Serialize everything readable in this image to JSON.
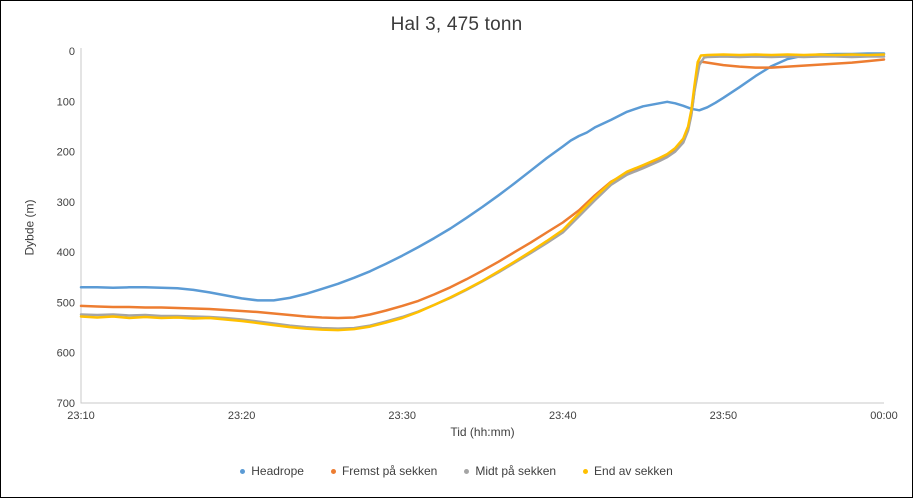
{
  "chart_data": {
    "type": "line",
    "title": "Hal 3, 475 tonn",
    "xlabel": "Tid (hh:mm)",
    "ylabel": "Dybde (m)",
    "x_tick_labels": [
      "23:10",
      "23:20",
      "23:30",
      "23:40",
      "23:50",
      "00:00"
    ],
    "x_tick_minutes": [
      0,
      10,
      20,
      30,
      40,
      50
    ],
    "xlim_minutes": [
      0,
      50
    ],
    "y_ticks": [
      0,
      100,
      200,
      300,
      400,
      500,
      600,
      700
    ],
    "ylim": [
      0,
      700
    ],
    "y_axis_inverted": true,
    "grid": false,
    "legend_position": "bottom",
    "axis_color": "#c9c9c9",
    "text_color": "#404040",
    "series": [
      {
        "name": "Headrope",
        "color": "#5B9BD5",
        "points": [
          [
            0,
            470
          ],
          [
            1,
            470
          ],
          [
            2,
            471
          ],
          [
            3,
            470
          ],
          [
            4,
            470
          ],
          [
            5,
            471
          ],
          [
            6,
            472
          ],
          [
            7,
            475
          ],
          [
            8,
            480
          ],
          [
            9,
            486
          ],
          [
            10,
            492
          ],
          [
            11,
            496
          ],
          [
            12,
            496
          ],
          [
            13,
            491
          ],
          [
            14,
            483
          ],
          [
            15,
            473
          ],
          [
            16,
            463
          ],
          [
            17,
            451
          ],
          [
            18,
            438
          ],
          [
            19,
            423
          ],
          [
            20,
            407
          ],
          [
            21,
            390
          ],
          [
            22,
            372
          ],
          [
            23,
            353
          ],
          [
            24,
            332
          ],
          [
            25,
            310
          ],
          [
            26,
            287
          ],
          [
            27,
            263
          ],
          [
            28,
            238
          ],
          [
            29,
            213
          ],
          [
            30,
            190
          ],
          [
            30.5,
            178
          ],
          [
            31,
            169
          ],
          [
            31.5,
            162
          ],
          [
            32,
            152
          ],
          [
            33,
            137
          ],
          [
            34,
            121
          ],
          [
            35,
            110
          ],
          [
            36,
            104
          ],
          [
            36.5,
            101
          ],
          [
            37,
            104
          ],
          [
            37.5,
            109
          ],
          [
            38,
            115
          ],
          [
            38.5,
            118
          ],
          [
            39,
            112
          ],
          [
            39.5,
            103
          ],
          [
            40,
            93
          ],
          [
            41,
            72
          ],
          [
            42,
            50
          ],
          [
            43,
            30
          ],
          [
            44,
            16
          ],
          [
            45,
            9
          ],
          [
            46,
            7
          ],
          [
            47,
            6
          ],
          [
            48,
            6
          ],
          [
            49,
            5
          ],
          [
            50,
            5
          ]
        ]
      },
      {
        "name": "Fremst på sekken",
        "color": "#ED7D31",
        "points": [
          [
            0,
            507
          ],
          [
            1,
            508
          ],
          [
            2,
            509
          ],
          [
            3,
            509
          ],
          [
            4,
            510
          ],
          [
            5,
            510
          ],
          [
            6,
            511
          ],
          [
            7,
            512
          ],
          [
            8,
            513
          ],
          [
            9,
            515
          ],
          [
            10,
            517
          ],
          [
            11,
            519
          ],
          [
            12,
            522
          ],
          [
            13,
            525
          ],
          [
            14,
            528
          ],
          [
            15,
            530
          ],
          [
            16,
            531
          ],
          [
            17,
            530
          ],
          [
            18,
            524
          ],
          [
            19,
            516
          ],
          [
            20,
            507
          ],
          [
            21,
            497
          ],
          [
            22,
            484
          ],
          [
            23,
            470
          ],
          [
            24,
            454
          ],
          [
            25,
            437
          ],
          [
            26,
            419
          ],
          [
            27,
            400
          ],
          [
            28,
            381
          ],
          [
            29,
            361
          ],
          [
            30,
            341
          ],
          [
            31,
            317
          ],
          [
            32,
            287
          ],
          [
            33,
            260
          ],
          [
            34,
            243
          ],
          [
            35,
            230
          ],
          [
            36,
            215
          ],
          [
            36.5,
            207
          ],
          [
            37,
            196
          ],
          [
            37.5,
            178
          ],
          [
            37.8,
            155
          ],
          [
            38,
            125
          ],
          [
            38.2,
            78
          ],
          [
            38.4,
            30
          ],
          [
            38.6,
            21
          ],
          [
            39,
            23
          ],
          [
            40,
            28
          ],
          [
            41,
            31
          ],
          [
            42,
            33
          ],
          [
            43,
            33
          ],
          [
            44,
            31
          ],
          [
            45,
            29
          ],
          [
            46,
            27
          ],
          [
            47,
            25
          ],
          [
            48,
            23
          ],
          [
            49,
            20
          ],
          [
            50,
            17
          ]
        ]
      },
      {
        "name": "Midt på sekken",
        "color": "#A5A5A5",
        "points": [
          [
            0,
            524
          ],
          [
            1,
            525
          ],
          [
            2,
            524
          ],
          [
            3,
            526
          ],
          [
            4,
            525
          ],
          [
            5,
            527
          ],
          [
            6,
            527
          ],
          [
            7,
            528
          ],
          [
            8,
            529
          ],
          [
            9,
            531
          ],
          [
            10,
            534
          ],
          [
            11,
            538
          ],
          [
            12,
            542
          ],
          [
            13,
            546
          ],
          [
            14,
            549
          ],
          [
            15,
            551
          ],
          [
            16,
            552
          ],
          [
            17,
            551
          ],
          [
            18,
            546
          ],
          [
            19,
            538
          ],
          [
            20,
            529
          ],
          [
            21,
            518
          ],
          [
            22,
            505
          ],
          [
            23,
            491
          ],
          [
            24,
            475
          ],
          [
            25,
            458
          ],
          [
            26,
            440
          ],
          [
            27,
            421
          ],
          [
            28,
            402
          ],
          [
            29,
            382
          ],
          [
            30,
            361
          ],
          [
            31,
            329
          ],
          [
            32,
            297
          ],
          [
            33,
            266
          ],
          [
            34,
            246
          ],
          [
            35,
            233
          ],
          [
            36,
            219
          ],
          [
            36.5,
            211
          ],
          [
            37,
            200
          ],
          [
            37.5,
            182
          ],
          [
            37.8,
            158
          ],
          [
            38,
            128
          ],
          [
            38.2,
            80
          ],
          [
            38.5,
            28
          ],
          [
            38.8,
            13
          ],
          [
            39,
            12
          ],
          [
            40,
            11
          ],
          [
            41,
            12
          ],
          [
            42,
            11
          ],
          [
            43,
            12
          ],
          [
            44,
            11
          ],
          [
            45,
            12
          ],
          [
            46,
            11
          ],
          [
            47,
            11
          ],
          [
            48,
            12
          ],
          [
            49,
            11
          ],
          [
            50,
            11
          ]
        ]
      },
      {
        "name": "End av sekken",
        "color": "#FFC000",
        "points": [
          [
            0,
            528
          ],
          [
            1,
            530
          ],
          [
            2,
            528
          ],
          [
            3,
            531
          ],
          [
            4,
            529
          ],
          [
            5,
            531
          ],
          [
            6,
            530
          ],
          [
            7,
            532
          ],
          [
            8,
            531
          ],
          [
            9,
            534
          ],
          [
            10,
            537
          ],
          [
            11,
            541
          ],
          [
            12,
            545
          ],
          [
            13,
            549
          ],
          [
            14,
            552
          ],
          [
            15,
            554
          ],
          [
            16,
            555
          ],
          [
            17,
            553
          ],
          [
            18,
            548
          ],
          [
            19,
            540
          ],
          [
            20,
            531
          ],
          [
            21,
            519
          ],
          [
            22,
            505
          ],
          [
            23,
            490
          ],
          [
            24,
            474
          ],
          [
            25,
            457
          ],
          [
            26,
            438
          ],
          [
            27,
            419
          ],
          [
            28,
            399
          ],
          [
            29,
            378
          ],
          [
            30,
            356
          ],
          [
            31,
            323
          ],
          [
            32,
            291
          ],
          [
            33,
            261
          ],
          [
            34,
            240
          ],
          [
            35,
            227
          ],
          [
            36,
            213
          ],
          [
            36.5,
            205
          ],
          [
            37,
            193
          ],
          [
            37.5,
            174
          ],
          [
            37.8,
            150
          ],
          [
            38,
            118
          ],
          [
            38.2,
            68
          ],
          [
            38.4,
            22
          ],
          [
            38.6,
            9
          ],
          [
            39,
            8
          ],
          [
            40,
            7
          ],
          [
            41,
            8
          ],
          [
            42,
            7
          ],
          [
            43,
            8
          ],
          [
            44,
            7
          ],
          [
            45,
            8
          ],
          [
            46,
            7
          ],
          [
            47,
            8
          ],
          [
            48,
            7
          ],
          [
            49,
            8
          ],
          [
            50,
            7
          ]
        ]
      }
    ]
  }
}
